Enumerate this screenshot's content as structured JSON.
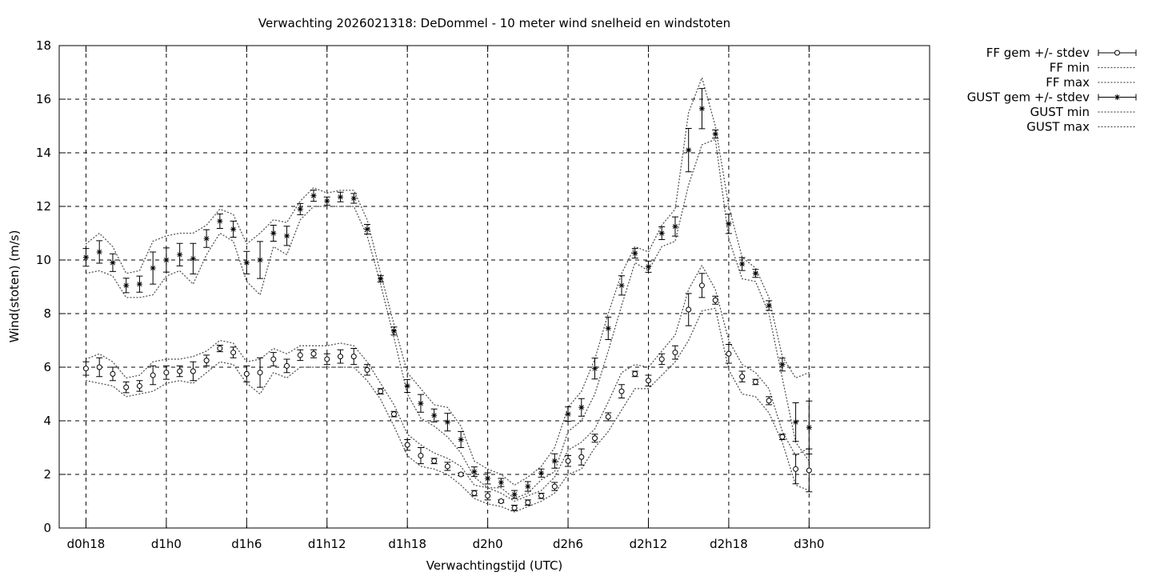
{
  "chart_data": {
    "type": "line",
    "title": "Verwachting 2026021318: DeDommel - 10 meter wind snelheid en windstoten",
    "xlabel": "Verwachtingstijd (UTC)",
    "ylabel": "Wind(stoten) (m/s)",
    "x_unit": "hours since d0h0",
    "xlim": [
      16,
      81
    ],
    "ylim": [
      0,
      18
    ],
    "grid": true,
    "legend_position": "outside top-right",
    "x_ticks": [
      {
        "value": 18,
        "label": "d0h18"
      },
      {
        "value": 24,
        "label": "d1h0"
      },
      {
        "value": 30,
        "label": "d1h6"
      },
      {
        "value": 36,
        "label": "d1h12"
      },
      {
        "value": 42,
        "label": "d1h18"
      },
      {
        "value": 48,
        "label": "d2h0"
      },
      {
        "value": 54,
        "label": "d2h6"
      },
      {
        "value": 60,
        "label": "d2h12"
      },
      {
        "value": 66,
        "label": "d2h18"
      },
      {
        "value": 72,
        "label": "d3h0"
      }
    ],
    "y_ticks": [
      {
        "value": 0,
        "label": "0"
      },
      {
        "value": 2,
        "label": "2"
      },
      {
        "value": 4,
        "label": "4"
      },
      {
        "value": 6,
        "label": "6"
      },
      {
        "value": 8,
        "label": "8"
      },
      {
        "value": 10,
        "label": "10"
      },
      {
        "value": 12,
        "label": "12"
      },
      {
        "value": 14,
        "label": "14"
      },
      {
        "value": 16,
        "label": "16"
      },
      {
        "value": 18,
        "label": "18"
      }
    ],
    "x": [
      18,
      19,
      20,
      21,
      22,
      23,
      24,
      25,
      26,
      27,
      28,
      29,
      30,
      31,
      32,
      33,
      34,
      35,
      36,
      37,
      38,
      39,
      40,
      41,
      42,
      43,
      44,
      45,
      46,
      47,
      48,
      49,
      50,
      51,
      52,
      53,
      54,
      55,
      56,
      57,
      58,
      59,
      60,
      61,
      62,
      63,
      64,
      65,
      66,
      67,
      68,
      69,
      70,
      71,
      72
    ],
    "series": [
      {
        "name": "FF gem +/- stdev",
        "kind": "errorbar",
        "marker": "circle",
        "values": [
          5.95,
          6.0,
          5.75,
          5.25,
          5.3,
          5.7,
          5.8,
          5.85,
          5.85,
          6.25,
          6.7,
          6.55,
          5.75,
          5.8,
          6.3,
          6.05,
          6.45,
          6.5,
          6.3,
          6.4,
          6.4,
          5.9,
          5.1,
          4.25,
          3.1,
          2.7,
          2.5,
          2.3,
          2.0,
          1.3,
          1.2,
          1.0,
          0.75,
          0.95,
          1.2,
          1.55,
          2.5,
          2.65,
          3.35,
          4.15,
          5.1,
          5.75,
          5.5,
          6.3,
          6.55,
          8.15,
          9.05,
          8.5,
          6.5,
          5.65,
          5.45,
          4.75,
          3.4,
          2.2,
          2.15
        ],
        "stdev": [
          0.25,
          0.35,
          0.25,
          0.2,
          0.2,
          0.35,
          0.25,
          0.2,
          0.35,
          0.2,
          0.12,
          0.2,
          0.3,
          0.55,
          0.25,
          0.25,
          0.2,
          0.15,
          0.2,
          0.25,
          0.3,
          0.2,
          0.1,
          0.1,
          0.2,
          0.3,
          0.1,
          0.15,
          0.05,
          0.1,
          0.15,
          0.05,
          0.1,
          0.1,
          0.1,
          0.15,
          0.2,
          0.3,
          0.15,
          0.15,
          0.25,
          0.1,
          0.2,
          0.2,
          0.25,
          0.6,
          0.45,
          0.15,
          0.35,
          0.2,
          0.1,
          0.15,
          0.1,
          0.55,
          0.8
        ]
      },
      {
        "name": "FF min",
        "kind": "dotted",
        "values": [
          5.5,
          5.4,
          5.3,
          4.9,
          5.0,
          5.1,
          5.4,
          5.5,
          5.4,
          5.8,
          6.2,
          6.1,
          5.4,
          5.0,
          5.8,
          5.6,
          6.0,
          6.0,
          6.0,
          6.0,
          6.0,
          5.5,
          4.8,
          3.8,
          2.7,
          2.3,
          2.2,
          2.0,
          1.6,
          1.1,
          0.9,
          0.8,
          0.6,
          0.8,
          1.0,
          1.3,
          2.0,
          2.2,
          3.0,
          3.6,
          4.4,
          5.2,
          5.2,
          5.7,
          6.2,
          7.0,
          8.1,
          8.2,
          5.9,
          5.0,
          4.9,
          4.3,
          3.2,
          1.6,
          1.4
        ]
      },
      {
        "name": "FF max",
        "kind": "dotted",
        "values": [
          6.3,
          6.5,
          6.2,
          5.6,
          5.7,
          6.2,
          6.3,
          6.3,
          6.4,
          6.6,
          7.0,
          6.9,
          6.2,
          6.3,
          6.7,
          6.5,
          6.8,
          6.8,
          6.8,
          6.9,
          6.8,
          6.2,
          5.4,
          4.6,
          3.5,
          3.1,
          2.8,
          2.6,
          2.3,
          1.6,
          1.5,
          1.3,
          1.0,
          1.2,
          1.4,
          1.9,
          2.9,
          3.2,
          3.7,
          4.7,
          5.8,
          6.1,
          6.0,
          6.6,
          7.2,
          8.9,
          9.8,
          8.9,
          7.0,
          6.1,
          5.8,
          5.2,
          3.6,
          2.7,
          3.0
        ]
      },
      {
        "name": "GUST gem +/- stdev",
        "kind": "errorbar",
        "marker": "star",
        "values": [
          10.1,
          10.3,
          9.9,
          9.05,
          9.1,
          9.7,
          10.0,
          10.2,
          10.05,
          10.8,
          11.45,
          11.15,
          9.9,
          10.0,
          11.0,
          10.9,
          11.9,
          12.4,
          12.2,
          12.35,
          12.3,
          11.15,
          9.3,
          7.35,
          5.3,
          4.65,
          4.2,
          3.95,
          3.3,
          2.1,
          1.85,
          1.7,
          1.25,
          1.55,
          2.05,
          2.5,
          4.25,
          4.5,
          5.95,
          7.45,
          9.05,
          10.25,
          9.75,
          11.0,
          11.25,
          14.1,
          15.65,
          14.7,
          11.35,
          9.85,
          9.5,
          8.3,
          6.1,
          3.95,
          3.75
        ]
      },
      {
        "name": "GUST min",
        "kind": "dotted",
        "values": [
          9.5,
          9.6,
          9.4,
          8.6,
          8.6,
          8.7,
          9.4,
          9.6,
          9.1,
          10.2,
          11.0,
          10.7,
          9.2,
          8.7,
          10.5,
          10.2,
          11.5,
          12.0,
          12.0,
          12.0,
          12.0,
          10.9,
          9.1,
          7.1,
          5.0,
          4.1,
          3.8,
          3.4,
          2.8,
          1.9,
          1.5,
          1.5,
          1.1,
          1.3,
          1.8,
          2.1,
          3.6,
          4.0,
          5.0,
          6.6,
          8.3,
          9.9,
          9.6,
          10.5,
          10.7,
          12.8,
          14.3,
          14.5,
          10.8,
          9.3,
          9.2,
          8.0,
          5.6,
          3.2,
          2.5
        ]
      },
      {
        "name": "GUST max",
        "kind": "dotted",
        "values": [
          10.6,
          11.0,
          10.5,
          9.5,
          9.6,
          10.7,
          10.9,
          11.0,
          11.0,
          11.3,
          11.9,
          11.7,
          10.6,
          11.0,
          11.5,
          11.4,
          12.2,
          12.7,
          12.5,
          12.6,
          12.6,
          11.5,
          9.5,
          7.6,
          5.8,
          5.2,
          4.6,
          4.5,
          3.8,
          2.5,
          2.2,
          2.0,
          1.6,
          1.9,
          2.3,
          3.0,
          4.5,
          5.1,
          6.3,
          8.0,
          9.5,
          10.5,
          10.3,
          11.3,
          11.9,
          15.5,
          16.8,
          15.0,
          12.0,
          10.1,
          9.7,
          8.6,
          6.4,
          5.6,
          5.8
        ]
      }
    ]
  }
}
